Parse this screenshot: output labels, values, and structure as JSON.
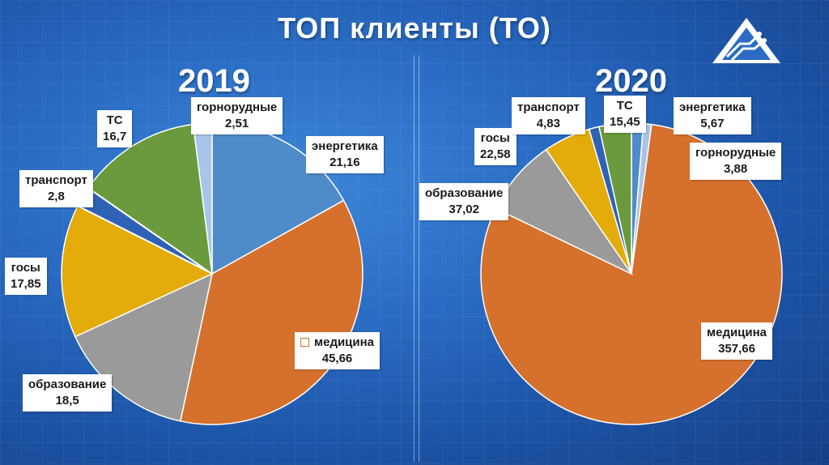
{
  "title": "ТОП клиенты (ТО)",
  "chart_data": [
    {
      "type": "pie",
      "title": "2019",
      "categories": [
        "энергетика",
        "медицина",
        "образование",
        "госы",
        "транспорт",
        "ТС",
        "горнорудные"
      ],
      "values": [
        21.16,
        45.66,
        18.5,
        17.85,
        2.8,
        16.7,
        2.51
      ],
      "value_labels": [
        "21,16",
        "45,66",
        "18,5",
        "17,85",
        "2,8",
        "16,7",
        "2,51"
      ],
      "colors": [
        "#4f8bc9",
        "#d5712c",
        "#9a9a9a",
        "#e3ac0b",
        "#2f62b4",
        "#6a9a3d",
        "#a8c4e8"
      ]
    },
    {
      "type": "pie",
      "title": "2020",
      "categories": [
        "энергетика",
        "горнорудные",
        "медицина",
        "образование",
        "госы",
        "транспорт",
        "ТС"
      ],
      "values": [
        5.67,
        3.88,
        357.66,
        37.02,
        22.58,
        4.83,
        15.45
      ],
      "value_labels": [
        "5,67",
        "3,88",
        "357,66",
        "37,02",
        "22,58",
        "4,83",
        "15,45"
      ],
      "colors": [
        "#4f8bc9",
        "#a8c4e8",
        "#d5712c",
        "#9a9a9a",
        "#e3ac0b",
        "#2f62b4",
        "#6a9a3d"
      ]
    }
  ]
}
